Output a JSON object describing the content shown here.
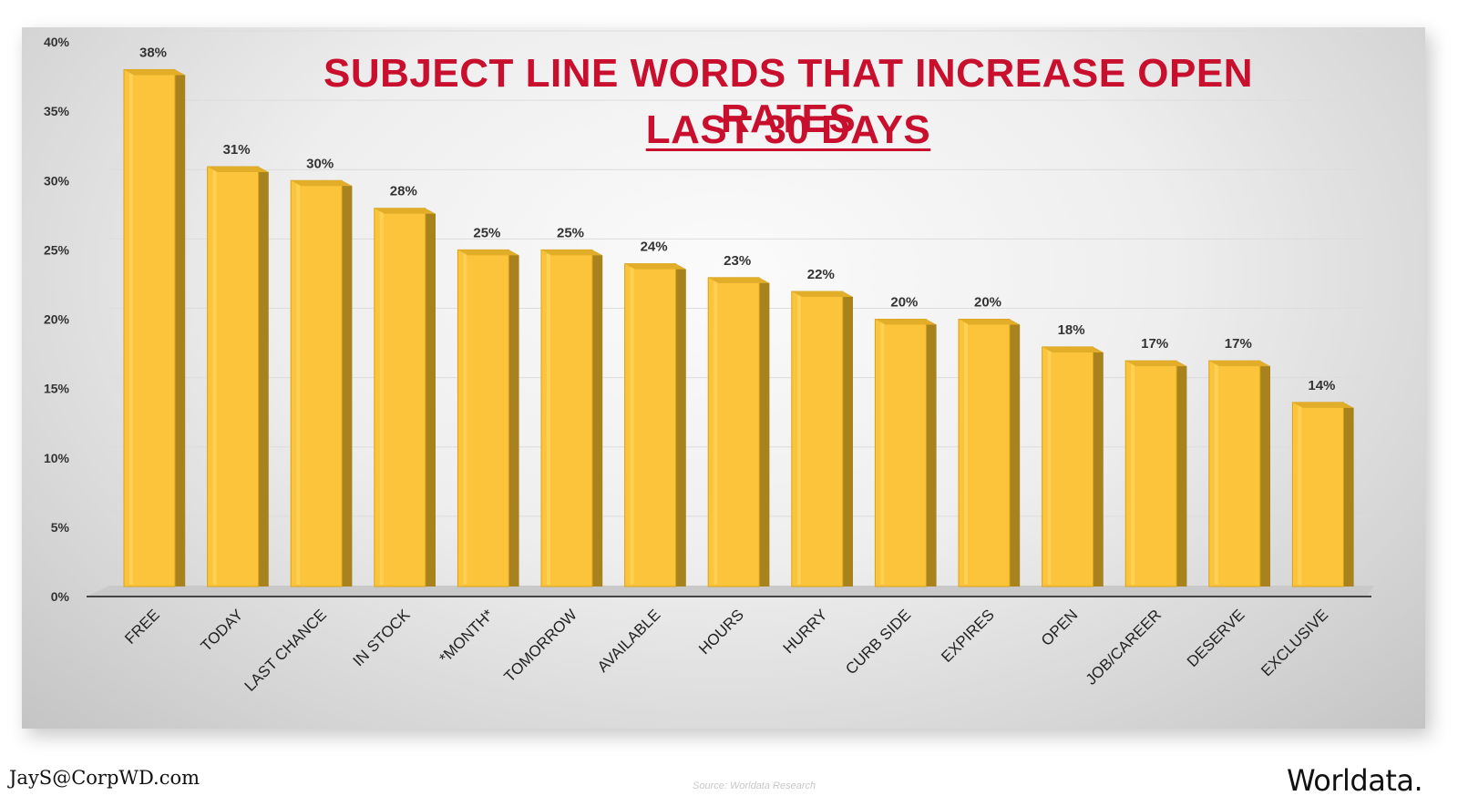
{
  "chart_data": {
    "type": "bar",
    "title": "SUBJECT LINE WORDS THAT INCREASE OPEN RATES",
    "subtitle": "LAST 30 DAYS",
    "categories": [
      "FREE",
      "TODAY",
      "LAST CHANCE",
      "IN STOCK",
      "*MONTH*",
      "TOMORROW",
      "AVAILABLE",
      "HOURS",
      "HURRY",
      "CURB SIDE",
      "EXPIRES",
      "OPEN",
      "JOB/CAREER",
      "DESERVE",
      "EXCLUSIVE"
    ],
    "values": [
      38,
      31,
      30,
      28,
      25,
      25,
      24,
      23,
      22,
      20,
      20,
      18,
      17,
      17,
      14
    ],
    "data_labels": [
      "38%",
      "31%",
      "30%",
      "28%",
      "25%",
      "25%",
      "24%",
      "23%",
      "22%",
      "20%",
      "20%",
      "18%",
      "17%",
      "17%",
      "14%"
    ],
    "y_ticks": [
      0,
      5,
      10,
      15,
      20,
      25,
      30,
      35,
      40
    ],
    "y_tick_labels": [
      "0%",
      "5%",
      "10%",
      "15%",
      "20%",
      "25%",
      "30%",
      "35%",
      "40%"
    ],
    "ylim": [
      0,
      40
    ],
    "xlabel": "",
    "ylabel": "",
    "grid": true,
    "style": "3d-column",
    "colors": {
      "bar_face": "#fcc43a",
      "bar_side": "#a8821c",
      "bar_top": "#e2ae2a",
      "title": "#c8102e"
    }
  },
  "footer": {
    "email": "JayS@CorpWD.com",
    "source": "Source: Worldata Research",
    "logo_text": "Worldata."
  }
}
